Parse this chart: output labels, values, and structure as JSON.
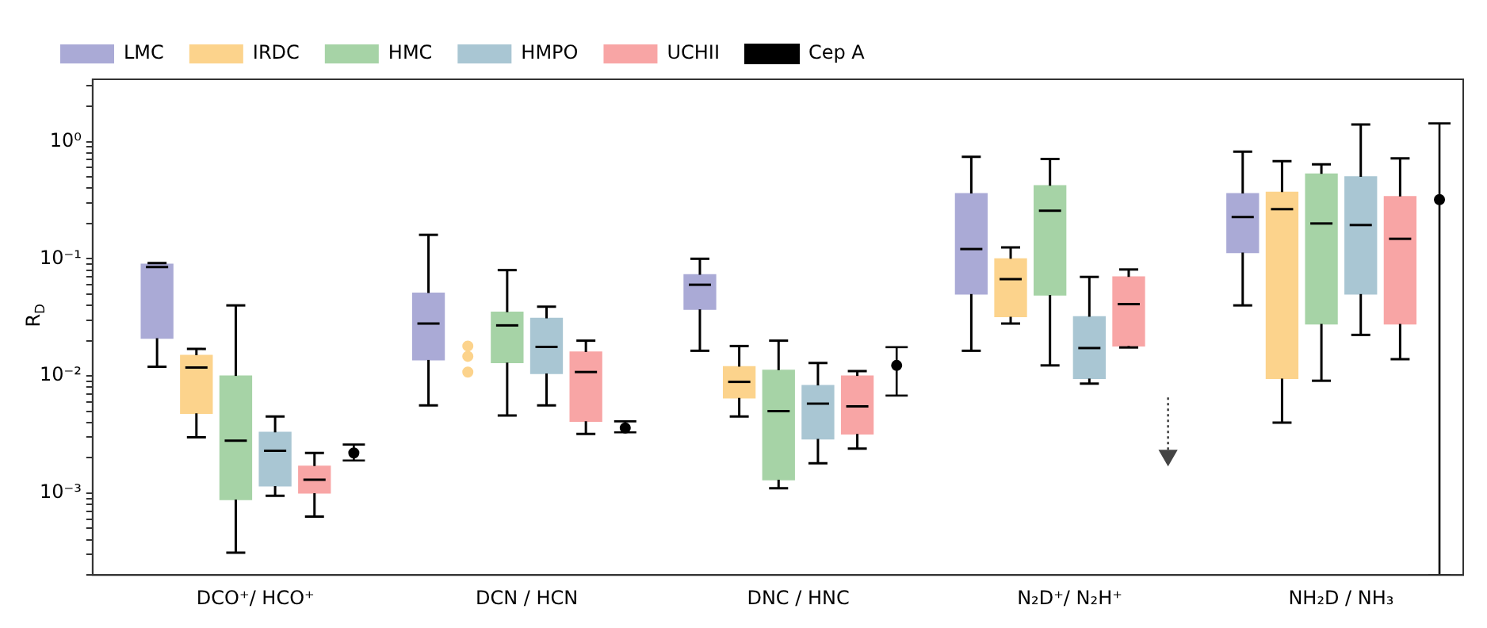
{
  "chart_data": {
    "type": "box",
    "ylabel": "R$_{D}$",
    "log": true,
    "legend": "top left",
    "categories": [
      "DCO⁺/ HCO⁺",
      "DCN / HCN",
      "DNC / HNC",
      "N₂D⁺/ N₂H⁺",
      "NH₂D / NH₃"
    ],
    "ylim": [
      0.0002,
      3.4
    ],
    "yticks": [
      {
        "value": 0.0002,
        "label": null
      },
      {
        "value": 0.0003,
        "label": null
      },
      {
        "value": 0.0004,
        "label": null
      },
      {
        "value": 0.0005,
        "label": null
      },
      {
        "value": 0.0006,
        "label": null
      },
      {
        "value": 0.0007,
        "label": null
      },
      {
        "value": 0.0008,
        "label": null
      },
      {
        "value": 0.0009,
        "label": null
      },
      {
        "value": 0.001,
        "label": "10⁻³"
      },
      {
        "value": 0.002,
        "label": null
      },
      {
        "value": 0.003,
        "label": null
      },
      {
        "value": 0.004,
        "label": null
      },
      {
        "value": 0.005,
        "label": null
      },
      {
        "value": 0.006,
        "label": null
      },
      {
        "value": 0.007,
        "label": null
      },
      {
        "value": 0.008,
        "label": null
      },
      {
        "value": 0.009,
        "label": null
      },
      {
        "value": 0.01,
        "label": "10⁻²"
      },
      {
        "value": 0.02,
        "label": null
      },
      {
        "value": 0.03,
        "label": null
      },
      {
        "value": 0.04,
        "label": null
      },
      {
        "value": 0.05,
        "label": null
      },
      {
        "value": 0.06,
        "label": null
      },
      {
        "value": 0.07,
        "label": null
      },
      {
        "value": 0.08,
        "label": null
      },
      {
        "value": 0.09,
        "label": null
      },
      {
        "value": 0.1,
        "label": "10⁻¹"
      },
      {
        "value": 0.2,
        "label": null
      },
      {
        "value": 0.3,
        "label": null
      },
      {
        "value": 0.4,
        "label": null
      },
      {
        "value": 0.5,
        "label": null
      },
      {
        "value": 0.6,
        "label": null
      },
      {
        "value": 0.7,
        "label": null
      },
      {
        "value": 0.8,
        "label": null
      },
      {
        "value": 0.9,
        "label": null
      },
      {
        "value": 1,
        "label": "10⁰"
      },
      {
        "value": 2,
        "label": null
      },
      {
        "value": 3,
        "label": null
      }
    ],
    "series": [
      {
        "name": "LMC",
        "color": "#aaaad6",
        "boxes": [
          {
            "low": 0.012,
            "q1": 0.021,
            "median": 0.085,
            "q3": 0.09,
            "high": 0.092
          },
          {
            "low": 0.0056,
            "q1": 0.0137,
            "median": 0.028,
            "q3": 0.051,
            "high": 0.16
          },
          {
            "low": 0.0164,
            "q1": 0.037,
            "median": 0.06,
            "q3": 0.073,
            "high": 0.1
          },
          {
            "low": 0.0164,
            "q1": 0.05,
            "median": 0.121,
            "q3": 0.36,
            "high": 0.74
          },
          {
            "low": 0.04,
            "q1": 0.113,
            "median": 0.227,
            "q3": 0.36,
            "high": 0.82
          }
        ]
      },
      {
        "name": "IRDC",
        "color": "#fcd38c",
        "boxes": [
          {
            "low": 0.003,
            "q1": 0.0048,
            "median": 0.0118,
            "q3": 0.015,
            "high": 0.017
          },
          null,
          {
            "low": 0.0045,
            "q1": 0.0065,
            "median": 0.0089,
            "q3": 0.012,
            "high": 0.018
          },
          {
            "low": 0.028,
            "q1": 0.032,
            "median": 0.067,
            "q3": 0.1,
            "high": 0.125
          },
          {
            "low": 0.004,
            "q1": 0.0095,
            "median": 0.265,
            "q3": 0.37,
            "high": 0.68
          }
        ]
      },
      {
        "name": "HMC",
        "color": "#a6d3a6",
        "boxes": [
          {
            "low": 0.00031,
            "q1": 0.00088,
            "median": 0.0028,
            "q3": 0.01,
            "high": 0.04
          },
          {
            "low": 0.0046,
            "q1": 0.013,
            "median": 0.027,
            "q3": 0.035,
            "high": 0.08
          },
          {
            "low": 0.0011,
            "q1": 0.0013,
            "median": 0.005,
            "q3": 0.0112,
            "high": 0.02
          },
          {
            "low": 0.0123,
            "q1": 0.049,
            "median": 0.257,
            "q3": 0.42,
            "high": 0.71
          },
          {
            "low": 0.0091,
            "q1": 0.0278,
            "median": 0.2,
            "q3": 0.53,
            "high": 0.64
          }
        ]
      },
      {
        "name": "HMPO",
        "color": "#a9c6d3",
        "boxes": [
          {
            "low": 0.00095,
            "q1": 0.00115,
            "median": 0.0023,
            "q3": 0.0033,
            "high": 0.0045
          },
          {
            "low": 0.0056,
            "q1": 0.0105,
            "median": 0.0177,
            "q3": 0.031,
            "high": 0.039
          },
          {
            "low": 0.0018,
            "q1": 0.0029,
            "median": 0.0058,
            "q3": 0.0083,
            "high": 0.0129
          },
          {
            "low": 0.0086,
            "q1": 0.0095,
            "median": 0.0173,
            "q3": 0.032,
            "high": 0.07
          },
          {
            "low": 0.0224,
            "q1": 0.05,
            "median": 0.194,
            "q3": 0.5,
            "high": 1.4
          }
        ]
      },
      {
        "name": "UCHII",
        "color": "#f8a5a5",
        "boxes": [
          {
            "low": 0.00063,
            "q1": 0.001,
            "median": 0.0013,
            "q3": 0.0017,
            "high": 0.0022
          },
          {
            "low": 0.0032,
            "q1": 0.0041,
            "median": 0.0108,
            "q3": 0.016,
            "high": 0.02
          },
          {
            "low": 0.0024,
            "q1": 0.0032,
            "median": 0.0055,
            "q3": 0.01,
            "high": 0.011
          },
          {
            "low": 0.0175,
            "q1": 0.018,
            "median": 0.041,
            "q3": 0.07,
            "high": 0.081
          },
          {
            "low": 0.0139,
            "q1": 0.0278,
            "median": 0.148,
            "q3": 0.34,
            "high": 0.72
          }
        ]
      },
      {
        "type": "scatter",
        "name": "Cep A",
        "color": "#000000",
        "marker": "circle",
        "line_style": "solid",
        "values": [
          0.0022,
          0.0036,
          0.0123,
          null,
          0.32
        ],
        "errors": [
          [
            0.0019,
            0.0026
          ],
          [
            0.0033,
            0.0041
          ],
          [
            0.0068,
            0.0176
          ],
          null,
          [
            0.0002,
            1.43
          ]
        ]
      },
      {
        "type": "scatter",
        "color": "#fcd38c",
        "marker": "circle",
        "x": [
          "DCN / HCN",
          "DCN / HCN",
          "DCN / HCN"
        ],
        "values": [
          0.018,
          0.0147,
          0.0108
        ]
      },
      {
        "type": "scatter",
        "color": "#444444",
        "marker": "triangle",
        "line_style": "dotted",
        "values": [
          null,
          null,
          null,
          0.0021,
          null
        ],
        "errors": [
          null,
          null,
          null,
          [
            0.0021,
            0.0066
          ],
          null
        ]
      }
    ]
  }
}
